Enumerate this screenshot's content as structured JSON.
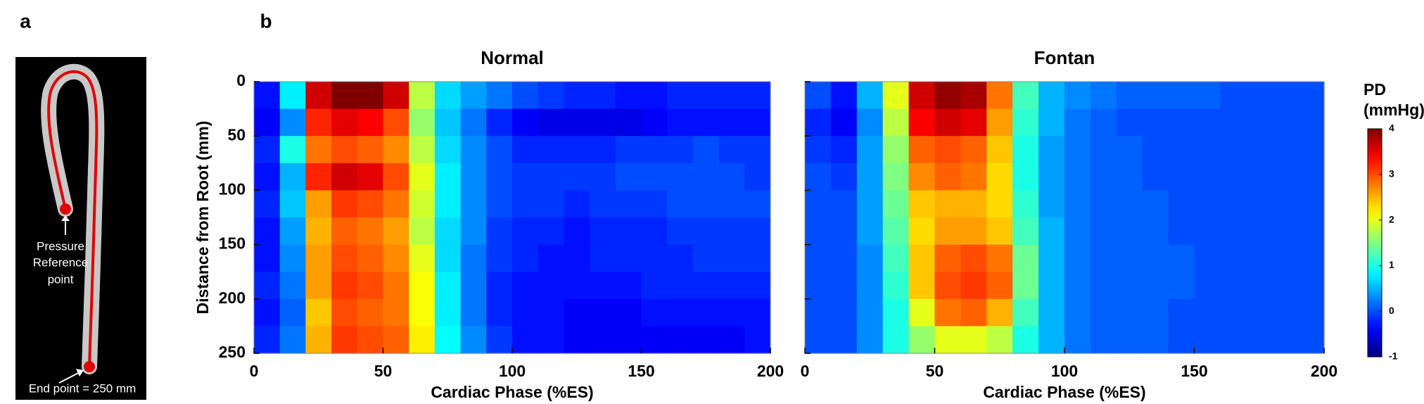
{
  "panel_a": {
    "label": "a",
    "annotations": [
      "Pressure",
      "Reference",
      "point",
      "End point = 250 mm"
    ]
  },
  "chart_data": [
    {
      "type": "heatmap",
      "panel_label": "b",
      "title": "Normal",
      "xlabel": "Cardiac Phase (%ES)",
      "ylabel": "Distance from Root (mm)",
      "xlim": [
        0,
        200
      ],
      "ylim": [
        0,
        250
      ],
      "y_inverted": true,
      "xticks": [
        0,
        50,
        100,
        150,
        200
      ],
      "yticks": [
        0,
        50,
        100,
        150,
        200,
        250
      ],
      "show_ytick_labels": true,
      "colormap": "jet",
      "clim": [
        -1,
        4
      ],
      "z": [
        [
          -0.3,
          0.8,
          3.6,
          4,
          4,
          3.6,
          1.8,
          0.7,
          0.4,
          0.2,
          0,
          -0.1,
          -0.2,
          -0.2,
          -0.3,
          -0.3,
          -0.2,
          -0.2,
          -0.2,
          -0.2
        ],
        [
          -0.4,
          0.3,
          3.2,
          3.5,
          3.4,
          3.0,
          1.6,
          0.6,
          0.2,
          -0.2,
          -0.4,
          -0.5,
          -0.5,
          -0.5,
          -0.5,
          -0.4,
          -0.3,
          -0.3,
          -0.3,
          -0.3
        ],
        [
          -0.2,
          1.0,
          2.8,
          3.0,
          2.9,
          2.7,
          1.8,
          0.7,
          0.3,
          0,
          -0.2,
          -0.2,
          -0.2,
          -0.2,
          -0.1,
          -0.1,
          -0.1,
          0,
          -0.1,
          -0.1
        ],
        [
          -0.3,
          0.5,
          3.2,
          3.6,
          3.5,
          3.0,
          2.0,
          0.8,
          0.3,
          0,
          -0.1,
          -0.1,
          -0.1,
          -0.1,
          0,
          0,
          0,
          0,
          0,
          -0.1
        ],
        [
          -0.2,
          0.6,
          2.6,
          3.1,
          3.0,
          2.8,
          1.9,
          0.8,
          0.3,
          0,
          -0.1,
          -0.1,
          -0.2,
          -0.1,
          -0.1,
          -0.1,
          0,
          0,
          0,
          0
        ],
        [
          -0.3,
          0.4,
          2.5,
          2.9,
          2.8,
          2.6,
          1.8,
          0.7,
          0.3,
          -0.1,
          -0.2,
          -0.2,
          -0.3,
          -0.2,
          -0.2,
          -0.2,
          -0.1,
          -0.1,
          -0.1,
          -0.1
        ],
        [
          -0.3,
          0.3,
          2.6,
          3.0,
          2.9,
          2.7,
          2.0,
          0.7,
          0.2,
          -0.1,
          -0.2,
          -0.3,
          -0.3,
          -0.2,
          -0.2,
          -0.2,
          -0.2,
          -0.1,
          -0.1,
          -0.1
        ],
        [
          -0.2,
          0.2,
          2.6,
          3.1,
          3.0,
          2.8,
          2.1,
          0.8,
          0.2,
          -0.2,
          -0.3,
          -0.3,
          -0.3,
          -0.3,
          -0.3,
          -0.2,
          -0.2,
          -0.2,
          -0.2,
          -0.2
        ],
        [
          -0.3,
          0.1,
          2.4,
          3.0,
          2.9,
          2.8,
          2.1,
          0.8,
          0.2,
          -0.2,
          -0.3,
          -0.3,
          -0.4,
          -0.4,
          -0.4,
          -0.3,
          -0.3,
          -0.3,
          -0.3,
          -0.3
        ],
        [
          -0.2,
          0.2,
          2.5,
          3.1,
          3.0,
          2.9,
          2.2,
          0.9,
          0.3,
          -0.1,
          -0.3,
          -0.3,
          -0.4,
          -0.4,
          -0.4,
          -0.4,
          -0.4,
          -0.4,
          -0.4,
          -0.3
        ]
      ]
    },
    {
      "type": "heatmap",
      "title": "Fontan",
      "xlabel": "Cardiac Phase (%ES)",
      "xlim": [
        0,
        200
      ],
      "ylim": [
        0,
        250
      ],
      "y_inverted": true,
      "xticks": [
        0,
        50,
        100,
        150,
        200
      ],
      "yticks": [
        0,
        50,
        100,
        150,
        200,
        250
      ],
      "show_ytick_labels": false,
      "colormap": "jet",
      "clim": [
        -1,
        4
      ],
      "colorbar": {
        "title": [
          "PD",
          "(mmHg)"
        ],
        "ticks": [
          -1,
          0,
          1,
          2,
          3,
          4
        ]
      },
      "z": [
        [
          0,
          -0.3,
          0.5,
          2.0,
          3.6,
          3.9,
          3.8,
          2.8,
          1.2,
          0.5,
          0.3,
          0.2,
          0.1,
          0.1,
          0.1,
          0.1,
          0,
          0,
          0,
          0
        ],
        [
          -0.2,
          -0.4,
          0.3,
          1.8,
          3.4,
          3.6,
          3.5,
          2.6,
          1.1,
          0.5,
          0.2,
          0.1,
          0,
          0,
          0,
          0,
          0,
          0,
          0,
          0
        ],
        [
          -0.1,
          -0.2,
          0.4,
          1.6,
          2.9,
          3.0,
          2.9,
          2.4,
          1.0,
          0.4,
          0.2,
          0.1,
          0.1,
          0,
          0,
          0,
          0,
          0,
          0,
          0
        ],
        [
          0,
          -0.1,
          0.4,
          1.5,
          2.7,
          2.9,
          2.8,
          2.3,
          1.0,
          0.4,
          0.2,
          0.1,
          0.1,
          0,
          0,
          0,
          0,
          0,
          0,
          0
        ],
        [
          0,
          0,
          0.4,
          1.4,
          2.4,
          2.5,
          2.5,
          2.3,
          1.1,
          0.4,
          0.2,
          0.1,
          0.1,
          0.1,
          0,
          0,
          0,
          0,
          0,
          0
        ],
        [
          0,
          0,
          0.4,
          1.3,
          2.3,
          2.6,
          2.6,
          2.4,
          1.2,
          0.5,
          0.2,
          0.1,
          0.1,
          0.1,
          0,
          0,
          0,
          0,
          0,
          0
        ],
        [
          0,
          0,
          0.3,
          1.2,
          2.4,
          2.9,
          3.0,
          2.8,
          1.4,
          0.5,
          0.2,
          0.1,
          0.1,
          0.1,
          0.1,
          0,
          0,
          0,
          0,
          0
        ],
        [
          0,
          0,
          0.3,
          1.1,
          2.4,
          3.0,
          3.1,
          2.9,
          1.4,
          0.5,
          0.2,
          0.1,
          0.1,
          0.1,
          0.1,
          0,
          0,
          0,
          0,
          0
        ],
        [
          0,
          0,
          0.3,
          1.0,
          2.0,
          2.8,
          2.9,
          2.5,
          1.2,
          0.5,
          0.2,
          0.1,
          0.1,
          0.1,
          0,
          0,
          0,
          0,
          0,
          0
        ],
        [
          0,
          0,
          0.3,
          1.0,
          1.6,
          2.0,
          2.0,
          1.8,
          1.0,
          0.5,
          0.2,
          0.1,
          0.1,
          0.1,
          0,
          0,
          0,
          0,
          0,
          0
        ]
      ]
    }
  ]
}
